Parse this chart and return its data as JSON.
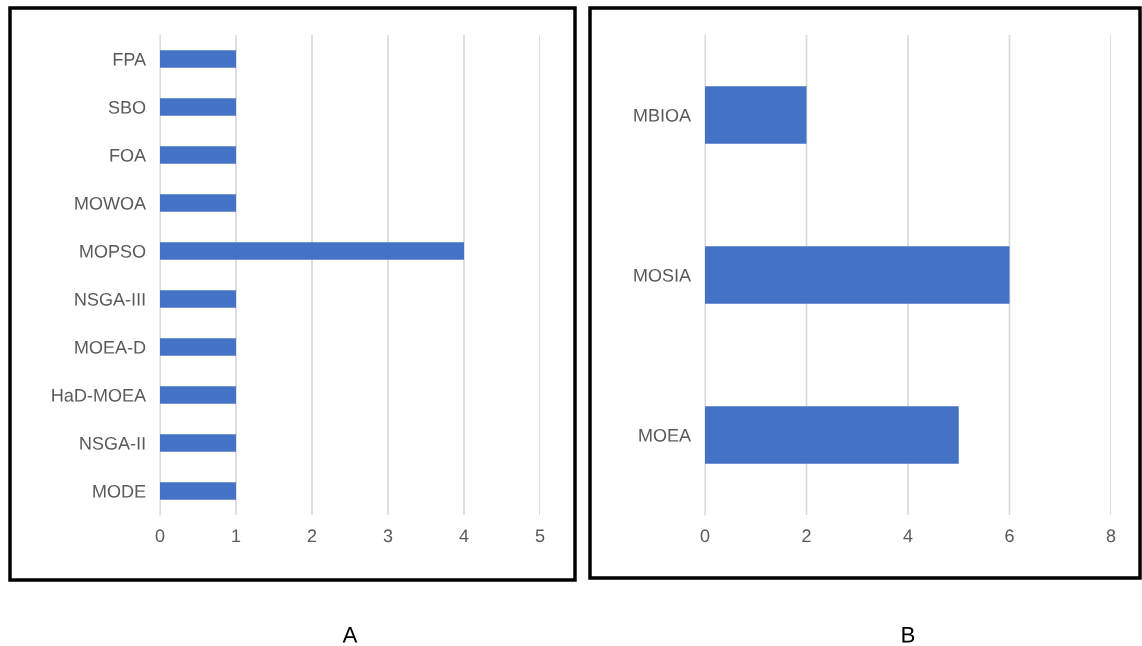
{
  "chart_data": [
    {
      "type": "bar",
      "orientation": "horizontal",
      "xlabel": "A",
      "categories": [
        "FPA",
        "SBO",
        "FOA",
        "MOWOA",
        "MOPSO",
        "NSGA-III",
        "MOEA-D",
        "HaD-MOEA",
        "NSGA-II",
        "MODE"
      ],
      "values": [
        1,
        1,
        1,
        1,
        4,
        1,
        1,
        1,
        1,
        1
      ],
      "color": "#4472c4",
      "xlim": [
        0,
        5
      ],
      "xticks": [
        0,
        1,
        2,
        3,
        4,
        5
      ],
      "grid": "x",
      "legend": false
    },
    {
      "type": "bar",
      "orientation": "horizontal",
      "xlabel": "B",
      "categories": [
        "MBIOA",
        "MOSIA",
        "MOEA"
      ],
      "values": [
        2,
        6,
        5
      ],
      "color": "#4472c4",
      "xlim": [
        0,
        8
      ],
      "xticks": [
        0,
        2,
        4,
        6,
        8
      ],
      "grid": "x",
      "legend": false
    }
  ]
}
